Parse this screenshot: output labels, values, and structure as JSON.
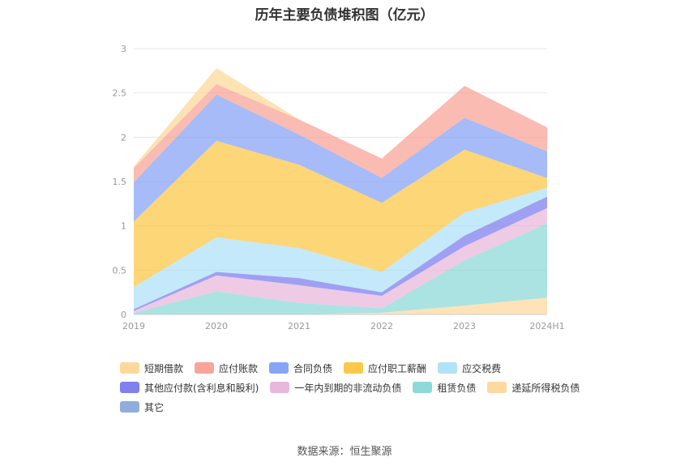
{
  "title": "历年主要负债堆积图（亿元）",
  "source": "数据来源：恒生聚源",
  "chart_data": {
    "type": "area",
    "stacked": true,
    "x": [
      "2019",
      "2020",
      "2021",
      "2022",
      "2023",
      "2024H1"
    ],
    "ylim": [
      0,
      3
    ],
    "yticks": [
      "0",
      "0.5",
      "1",
      "1.5",
      "2",
      "2.5",
      "3"
    ],
    "grid": true,
    "legend_position": "bottom",
    "series": [
      {
        "name": "递延所得税负债",
        "color": "#fdd9a0",
        "values": [
          0.0,
          0.0,
          0.0,
          0.02,
          0.1,
          0.19
        ]
      },
      {
        "name": "租赁负债",
        "color": "#8fd9d9",
        "values": [
          0.02,
          0.26,
          0.13,
          0.05,
          0.51,
          0.84
        ]
      },
      {
        "name": "一年内到期的非流动负债",
        "color": "#e8b8dc",
        "values": [
          0.02,
          0.18,
          0.2,
          0.14,
          0.16,
          0.17
        ]
      },
      {
        "name": "其他应付款(含利息和股利)",
        "color": "#8080ee",
        "values": [
          0.02,
          0.04,
          0.08,
          0.04,
          0.12,
          0.13
        ]
      },
      {
        "name": "应交税费",
        "color": "#b0e2f8",
        "values": [
          0.25,
          0.39,
          0.34,
          0.23,
          0.26,
          0.1
        ]
      },
      {
        "name": "应付职工薪酬",
        "color": "#fbc84a",
        "values": [
          0.74,
          1.09,
          0.94,
          0.78,
          0.71,
          0.11
        ]
      },
      {
        "name": "合同负债",
        "color": "#88a4f4",
        "values": [
          0.44,
          0.52,
          0.34,
          0.28,
          0.36,
          0.3
        ]
      },
      {
        "name": "应付账款",
        "color": "#f8a498",
        "values": [
          0.16,
          0.12,
          0.17,
          0.22,
          0.36,
          0.27
        ]
      },
      {
        "name": "其它",
        "color": "#90aedc",
        "values": [
          0.0,
          0.0,
          0.0,
          0.0,
          0.0,
          0.0
        ]
      },
      {
        "name": "短期借款",
        "color": "#fcd89a",
        "values": [
          0.02,
          0.18,
          0.0,
          0.0,
          0.0,
          0.0
        ]
      }
    ]
  },
  "legend": [
    {
      "label": "短期借款",
      "color": "#fcd89a"
    },
    {
      "label": "应付账款",
      "color": "#f8a498"
    },
    {
      "label": "合同负债",
      "color": "#88a4f4"
    },
    {
      "label": "应付职工薪酬",
      "color": "#fbc84a"
    },
    {
      "label": "应交税费",
      "color": "#b0e2f8"
    },
    {
      "label": "其他应付款(含利息和股利)",
      "color": "#8080ee"
    },
    {
      "label": "一年内到期的非流动负债",
      "color": "#e8b8dc"
    },
    {
      "label": "租赁负债",
      "color": "#8fd9d9"
    },
    {
      "label": "递延所得税负债",
      "color": "#fdd9a0"
    },
    {
      "label": "其它",
      "color": "#90aedc"
    }
  ]
}
